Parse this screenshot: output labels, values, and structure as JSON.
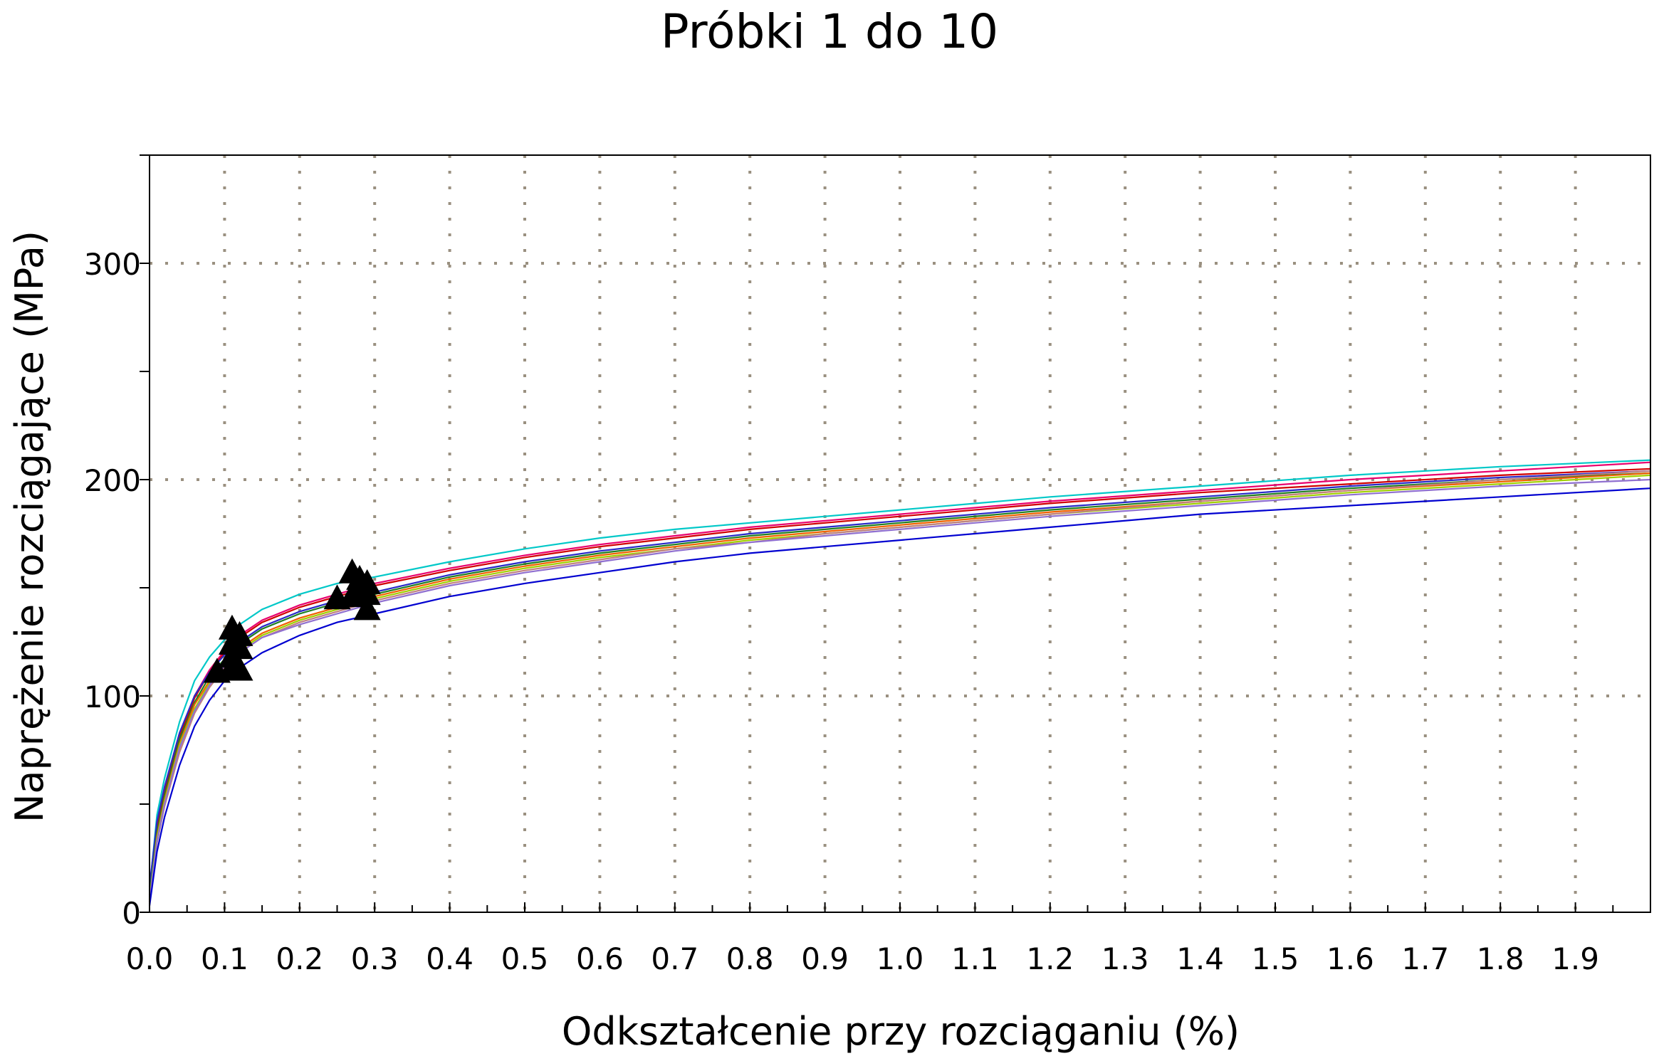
{
  "chart_data": {
    "type": "line",
    "title": "Próbki  1 do 10",
    "xlabel": "Odkształcenie przy rozciąganiu (%)",
    "ylabel": "Naprężenie rozciągające (MPa)",
    "xlim": [
      0.0,
      2.0
    ],
    "ylim": [
      0,
      350
    ],
    "x_ticks": [
      0.0,
      0.1,
      0.2,
      0.3,
      0.4,
      0.5,
      0.6,
      0.7,
      0.8,
      0.9,
      1.0,
      1.1,
      1.2,
      1.3,
      1.4,
      1.5,
      1.6,
      1.7,
      1.8,
      1.9
    ],
    "x_tick_labels": [
      "0.0",
      "0.1",
      "0.2",
      "0.3",
      "0.4",
      "0.5",
      "0.6",
      "0.7",
      "0.8",
      "0.9",
      "1.0",
      "1.1",
      "1.2",
      "1.3",
      "1.4",
      "1.5",
      "1.6",
      "1.7",
      "1.8",
      "1.9"
    ],
    "y_ticks": [
      0,
      100,
      200,
      300
    ],
    "y_tick_labels": [
      "0",
      "100",
      "200",
      "300"
    ],
    "grid": true,
    "legend": "none",
    "x": [
      0.0,
      0.01,
      0.02,
      0.04,
      0.06,
      0.08,
      0.1,
      0.12,
      0.15,
      0.2,
      0.25,
      0.3,
      0.4,
      0.5,
      0.6,
      0.7,
      0.8,
      0.9,
      1.0,
      1.2,
      1.4,
      1.6,
      1.8,
      2.0
    ],
    "series": [
      {
        "color": "#00c8c8",
        "values": [
          10,
          45,
          62,
          88,
          107,
          118,
          126,
          133,
          140,
          147,
          152,
          155,
          162,
          168,
          173,
          177,
          180,
          183,
          186,
          192,
          197,
          202,
          206,
          209
        ]
      },
      {
        "color": "#e8006e",
        "values": [
          8,
          40,
          57,
          82,
          100,
          112,
          121,
          128,
          135,
          142,
          147,
          152,
          159,
          165,
          170,
          174,
          178,
          181,
          184,
          190,
          195,
          200,
          204,
          208
        ]
      },
      {
        "color": "#d00000",
        "values": [
          6,
          38,
          56,
          81,
          99,
          111,
          120,
          127,
          134,
          141,
          146,
          151,
          158,
          164,
          169,
          173,
          177,
          180,
          183,
          189,
          194,
          198,
          202,
          205
        ]
      },
      {
        "color": "#2828c8",
        "values": [
          12,
          42,
          58,
          83,
          100,
          111,
          119,
          125,
          132,
          139,
          144,
          148,
          156,
          162,
          167,
          171,
          175,
          178,
          181,
          187,
          192,
          197,
          201,
          204
        ]
      },
      {
        "color": "#208020",
        "values": [
          7,
          37,
          54,
          80,
          97,
          109,
          117,
          124,
          131,
          138,
          143,
          147,
          155,
          161,
          166,
          170,
          174,
          177,
          180,
          186,
          191,
          196,
          200,
          203
        ]
      },
      {
        "color": "#f06000",
        "values": [
          5,
          35,
          52,
          78,
          96,
          107,
          116,
          122,
          129,
          136,
          141,
          146,
          154,
          160,
          165,
          169,
          173,
          176,
          179,
          185,
          190,
          195,
          199,
          203
        ]
      },
      {
        "color": "#a0d000",
        "values": [
          6,
          34,
          51,
          77,
          94,
          106,
          114,
          121,
          128,
          135,
          140,
          145,
          153,
          159,
          164,
          168,
          172,
          175,
          178,
          184,
          189,
          194,
          198,
          202
        ]
      },
      {
        "color": "#c08080",
        "values": [
          4,
          32,
          49,
          74,
          92,
          104,
          113,
          120,
          127,
          134,
          139,
          144,
          152,
          158,
          163,
          168,
          171,
          175,
          178,
          184,
          190,
          195,
          200,
          204
        ]
      },
      {
        "color": "#9070d0",
        "values": [
          5,
          33,
          50,
          76,
          93,
          105,
          114,
          120,
          127,
          133,
          138,
          143,
          151,
          157,
          162,
          167,
          171,
          174,
          177,
          183,
          188,
          193,
          197,
          200
        ]
      },
      {
        "color": "#0000d0",
        "values": [
          3,
          28,
          44,
          68,
          86,
          98,
          107,
          113,
          120,
          128,
          134,
          138,
          146,
          152,
          157,
          162,
          166,
          169,
          172,
          178,
          184,
          188,
          192,
          196
        ]
      }
    ],
    "markers": [
      {
        "x": 0.09,
        "y": 111
      },
      {
        "x": 0.11,
        "y": 113
      },
      {
        "x": 0.12,
        "y": 112
      },
      {
        "x": 0.11,
        "y": 118
      },
      {
        "x": 0.12,
        "y": 122
      },
      {
        "x": 0.11,
        "y": 124
      },
      {
        "x": 0.12,
        "y": 128
      },
      {
        "x": 0.11,
        "y": 131
      },
      {
        "x": 0.25,
        "y": 145
      },
      {
        "x": 0.27,
        "y": 146
      },
      {
        "x": 0.28,
        "y": 150
      },
      {
        "x": 0.29,
        "y": 152
      },
      {
        "x": 0.28,
        "y": 154
      },
      {
        "x": 0.27,
        "y": 157
      },
      {
        "x": 0.29,
        "y": 147
      },
      {
        "x": 0.29,
        "y": 140
      }
    ],
    "marker_color": "#000000",
    "grid_color": "#9a9080"
  }
}
